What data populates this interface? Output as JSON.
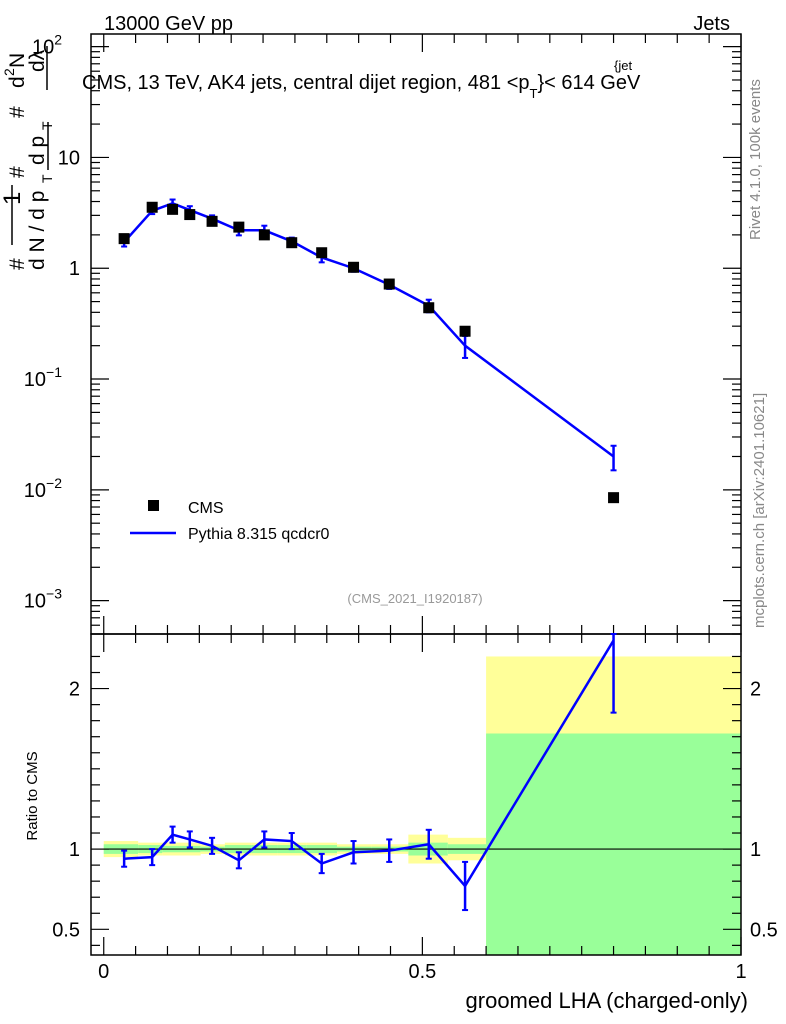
{
  "header": {
    "left": "13000 GeV pp",
    "right": "Jets"
  },
  "side_labels": {
    "rivet": "Rivet 4.1.0,  100k events",
    "mcplots": "mcplots.cern.ch [arXiv:2401.10621]"
  },
  "chart_data": [
    {
      "type": "line",
      "panel": "main",
      "title": "CMS, 13 TeV, AK4 jets, central dijet region, 481 <p",
      "title_sup": "{jet",
      "title_sub": "T",
      "title_tail": "}< 614 GeV",
      "ylabel": "1/N dN/dpT ... d²N/dpT dλ",
      "yscale": "log",
      "ylim": [
        0.0005,
        130
      ],
      "xlim": [
        -0.02,
        1.0
      ],
      "y_ticks": [
        {
          "v": 100,
          "base": "10",
          "exp": "2"
        },
        {
          "v": 10,
          "base": "10",
          "exp": ""
        },
        {
          "v": 1,
          "base": "1",
          "exp": ""
        },
        {
          "v": 0.1,
          "base": "10",
          "exp": "−1"
        },
        {
          "v": 0.01,
          "base": "10",
          "exp": "−2"
        },
        {
          "v": 0.001,
          "base": "10",
          "exp": "−3"
        }
      ],
      "watermark": "(CMS_2021_I1920187)",
      "legend": [
        {
          "label": "CMS",
          "marker": "square",
          "color": "#000000"
        },
        {
          "label": "Pythia 8.315 qcdcr0",
          "marker": "line",
          "color": "#0000ff"
        }
      ],
      "series": [
        {
          "name": "CMS",
          "color": "#000000",
          "x": [
            0.032,
            0.076,
            0.108,
            0.135,
            0.17,
            0.212,
            0.252,
            0.295,
            0.342,
            0.392,
            0.448,
            0.51,
            0.567,
            0.8
          ],
          "y": [
            1.85,
            3.55,
            3.4,
            3.05,
            2.65,
            2.35,
            2.0,
            1.7,
            1.38,
            1.02,
            0.72,
            0.44,
            0.27,
            0.0085
          ]
        },
        {
          "name": "Pythia 8.315 qcdcr0",
          "color": "#0000ff",
          "x": [
            0.032,
            0.076,
            0.108,
            0.135,
            0.17,
            0.212,
            0.252,
            0.295,
            0.342,
            0.392,
            0.448,
            0.51,
            0.567,
            0.8
          ],
          "y": [
            1.72,
            3.3,
            3.85,
            3.35,
            2.8,
            2.2,
            2.2,
            1.75,
            1.25,
            1.0,
            0.71,
            0.46,
            0.2,
            0.02
          ],
          "yerr": [
            0.15,
            0.22,
            0.32,
            0.28,
            0.2,
            0.22,
            0.22,
            0.14,
            0.12,
            0.07,
            0.06,
            0.06,
            0.045,
            0.005
          ]
        }
      ]
    },
    {
      "type": "line",
      "panel": "ratio",
      "xlabel": "groomed LHA (charged-only)",
      "ylabel": "Ratio to CMS",
      "ylim": [
        0.34,
        2.34
      ],
      "xlim": [
        -0.02,
        1.0
      ],
      "x_ticks": [
        {
          "v": 0,
          "label": "0"
        },
        {
          "v": 0.5,
          "label": "0.5"
        },
        {
          "v": 1,
          "label": "1"
        }
      ],
      "y_ticks": [
        {
          "v": 0.5,
          "label": "0.5"
        },
        {
          "v": 1,
          "label": "1"
        },
        {
          "v": 2,
          "label": "2"
        }
      ],
      "reference": 1,
      "bands": {
        "bins": [
          0.0,
          0.054,
          0.092,
          0.122,
          0.152,
          0.19,
          0.232,
          0.272,
          0.318,
          0.366,
          0.42,
          0.478,
          0.54,
          0.6,
          1.0
        ],
        "yellow_lo": [
          0.95,
          0.96,
          0.96,
          0.96,
          0.97,
          0.96,
          0.96,
          0.96,
          0.96,
          0.97,
          0.97,
          0.91,
          0.93,
          0.34
        ],
        "yellow_hi": [
          1.05,
          1.04,
          1.04,
          1.04,
          1.03,
          1.04,
          1.04,
          1.04,
          1.04,
          1.03,
          1.03,
          1.09,
          1.07,
          2.2
        ],
        "green_lo": [
          0.97,
          0.975,
          0.98,
          0.98,
          0.985,
          0.975,
          0.975,
          0.975,
          0.975,
          0.985,
          0.985,
          0.96,
          0.97,
          0.34
        ],
        "green_hi": [
          1.03,
          1.025,
          1.02,
          1.02,
          1.015,
          1.025,
          1.025,
          1.025,
          1.025,
          1.015,
          1.015,
          1.04,
          1.03,
          1.72
        ],
        "yellow_color": "#ffff99",
        "green_color": "#99ff99"
      },
      "series": [
        {
          "name": "Pythia 8.315 qcdcr0 / CMS",
          "color": "#0000ff",
          "x": [
            0.032,
            0.076,
            0.108,
            0.135,
            0.17,
            0.212,
            0.252,
            0.295,
            0.342,
            0.392,
            0.448,
            0.51,
            0.567,
            0.8
          ],
          "y": [
            0.94,
            0.95,
            1.09,
            1.06,
            1.02,
            0.93,
            1.06,
            1.05,
            0.91,
            0.98,
            0.99,
            1.03,
            0.77,
            2.3
          ],
          "yerr": [
            0.05,
            0.05,
            0.05,
            0.05,
            0.05,
            0.05,
            0.05,
            0.05,
            0.06,
            0.07,
            0.07,
            0.09,
            0.15,
            0.45
          ]
        }
      ]
    }
  ]
}
